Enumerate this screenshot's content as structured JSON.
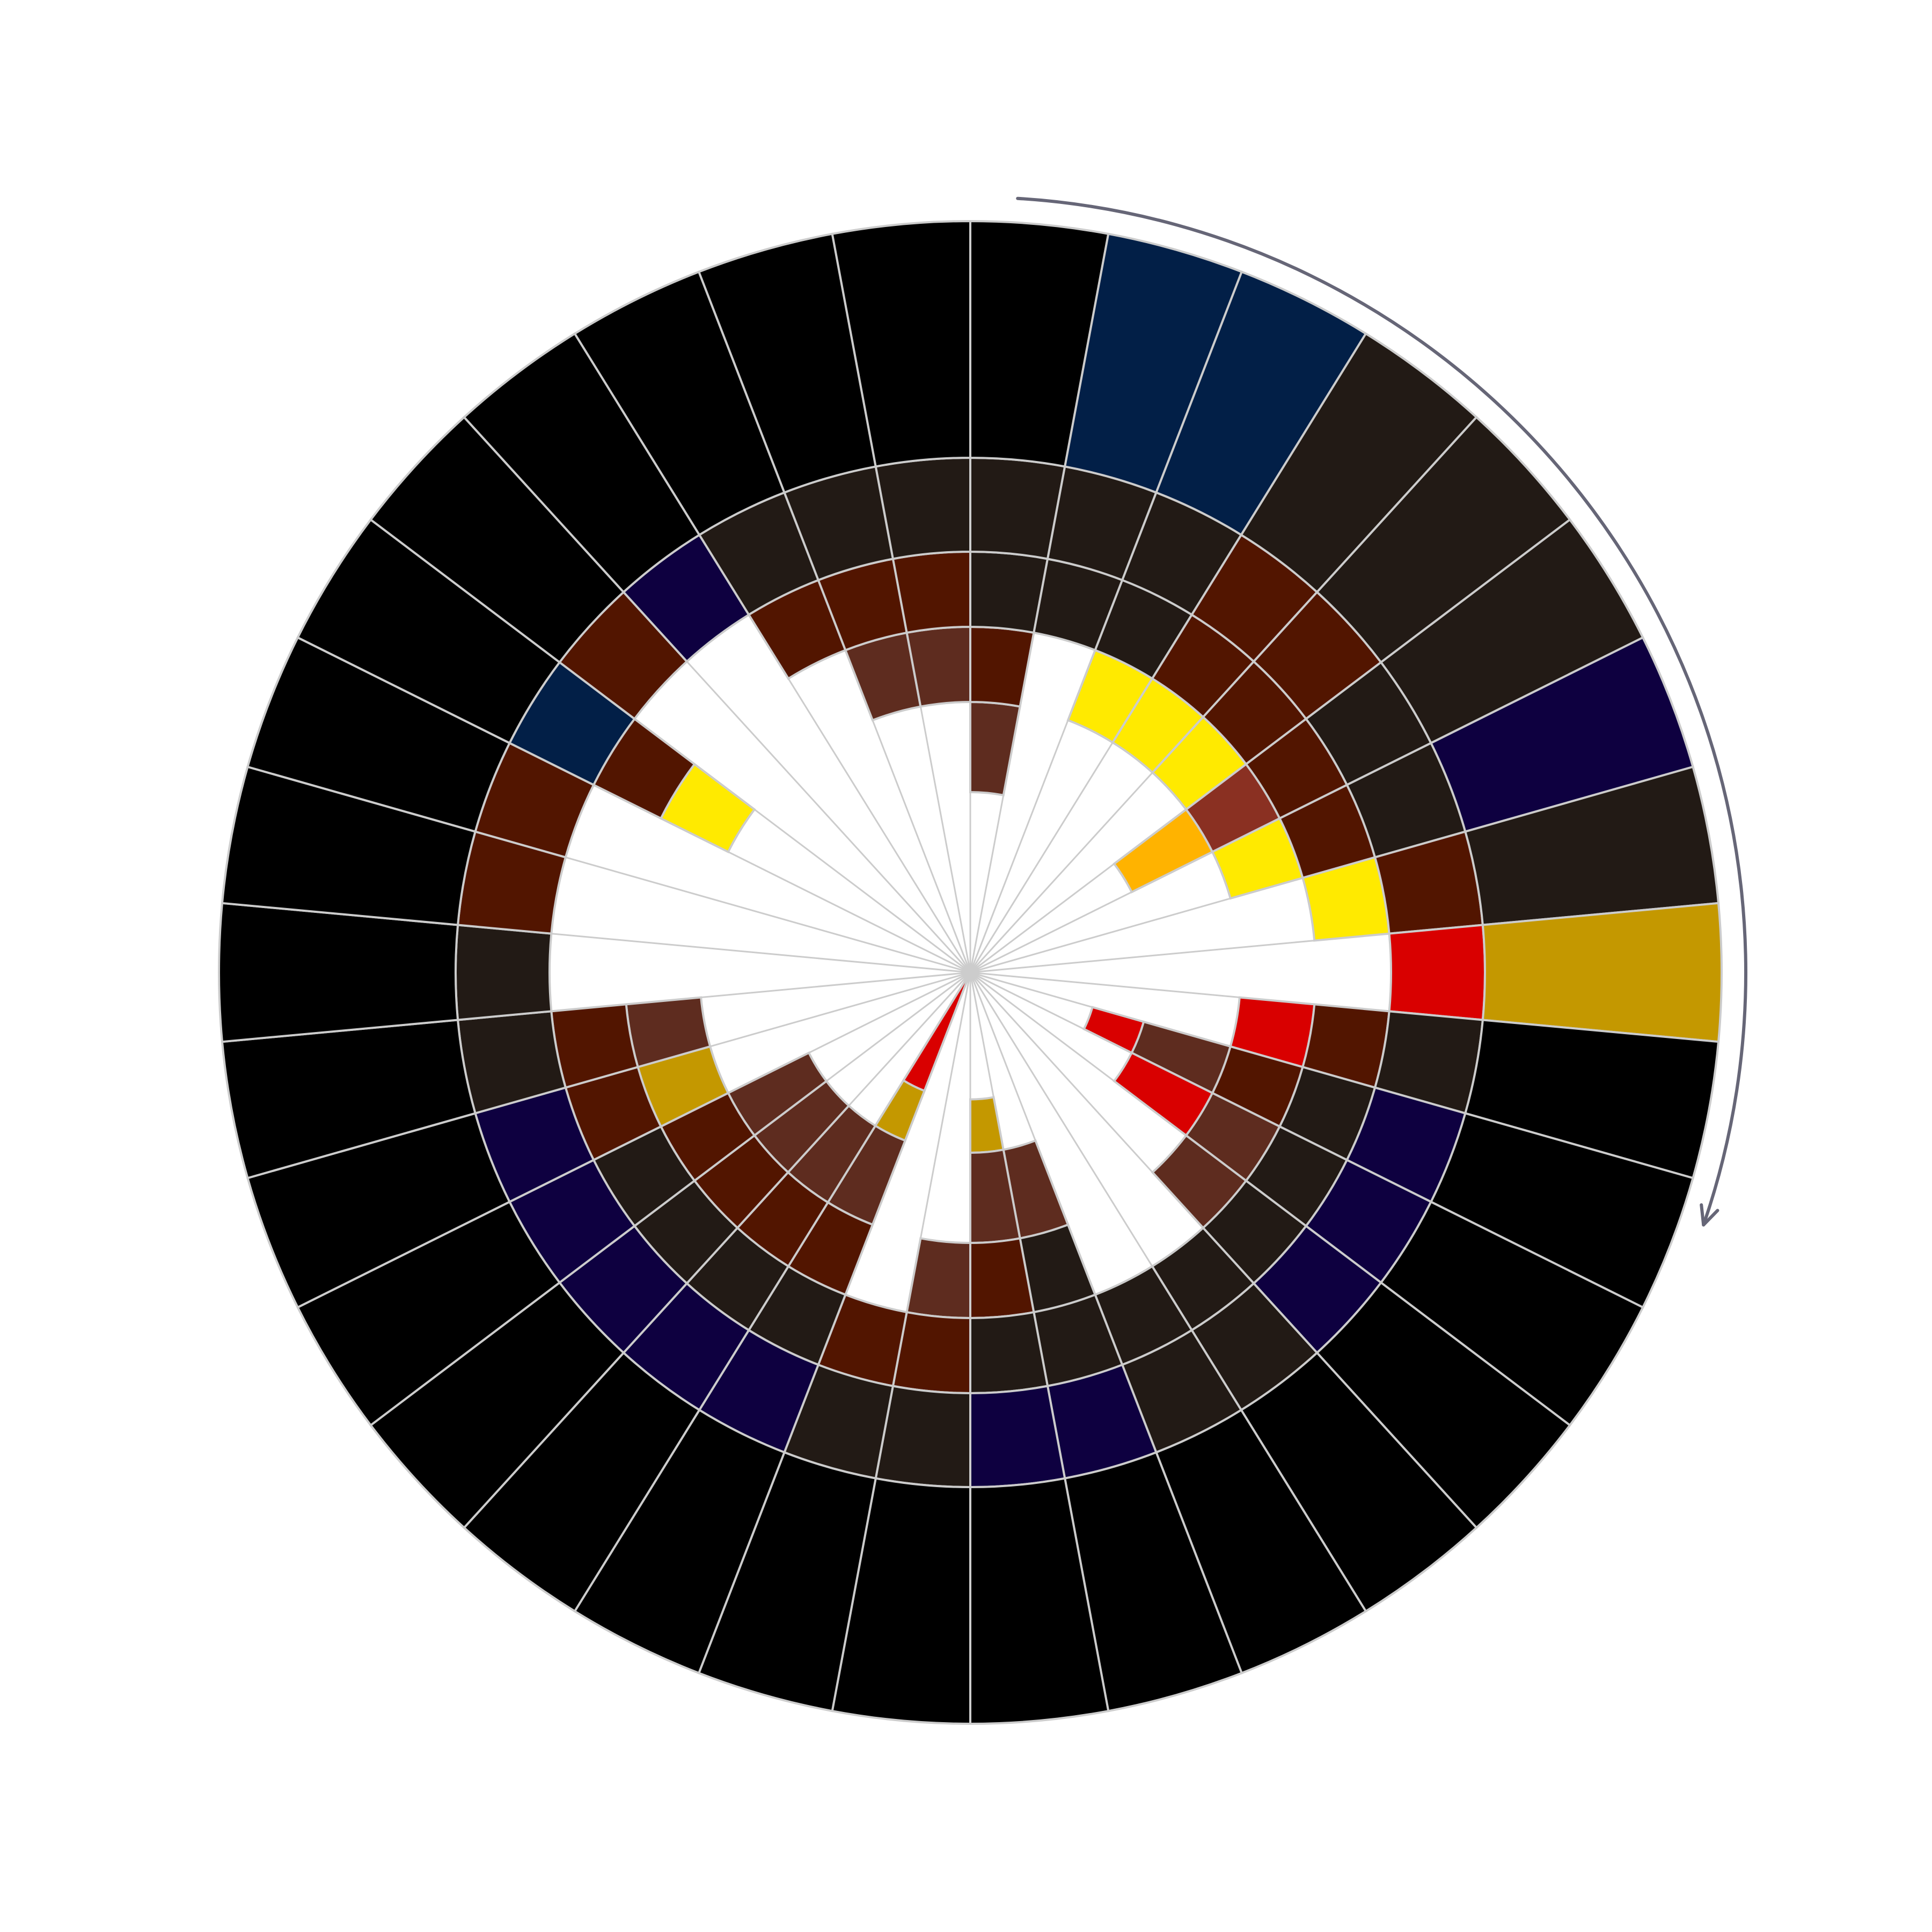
{
  "diagram": {
    "type": "radial-segmented-wheel",
    "direction": "clockwise",
    "background": "#ffffff",
    "line_color": "#cccccc",
    "arrow_color": "#666677",
    "palette": {
      "K": "#000000",
      "D": "#221a15",
      "B": "#521500",
      "R": "#5e2c1f",
      "N": "#021f47",
      "V": "#0e0040",
      "Y": "#ffea00",
      "O": "#ffb300",
      "G": "#c49800",
      "E": "#d90000",
      "M": "#8a3022"
    },
    "rings": [
      0.169,
      0.24,
      0.36,
      0.46,
      0.56,
      0.685,
      1.0
    ],
    "spokes": [
      {
        "cells": [
          "R",
          "B",
          "D",
          "D",
          "K"
        ]
      },
      {
        "cells": [
          "D",
          "D",
          "N"
        ]
      },
      {
        "cells": [
          "Y",
          "D",
          "D",
          "N"
        ]
      },
      {
        "cells": [
          "Y",
          "B",
          "B",
          "D"
        ]
      },
      {
        "cells": [
          "Y",
          "B",
          "B",
          "D"
        ]
      },
      {
        "cells": [
          "O",
          "M",
          "B",
          "D",
          "D"
        ]
      },
      {
        "cells": [
          "Y",
          "B",
          "D",
          "V"
        ]
      },
      {
        "cells": [
          "Y",
          "B",
          "D"
        ]
      },
      {
        "cells": [
          "E",
          "G"
        ]
      },
      {
        "cells": [
          "E",
          "B",
          "D",
          "K"
        ]
      },
      {
        "cells": [
          "E",
          "R",
          "B",
          "D",
          "V",
          "K"
        ]
      },
      {
        "cells": [
          "E",
          "R",
          "D",
          "V",
          "K"
        ]
      },
      {
        "cells": [
          "R",
          "D",
          "V",
          "K"
        ]
      },
      {
        "cells": [
          "D",
          "D",
          "K"
        ]
      },
      {
        "cells": [
          "D",
          "D",
          "K"
        ]
      },
      {
        "cells": [
          "R",
          "D",
          "D",
          "V",
          "K"
        ]
      },
      {
        "cells": [
          "G",
          "R",
          "B",
          "D",
          "V",
          "K"
        ]
      },
      {
        "cells": [
          "R",
          "B",
          "D",
          "K"
        ]
      },
      {
        "cells": [
          "B",
          "D",
          "K"
        ]
      },
      {
        "cells": [
          "Y",
          "E",
          "G",
          "R",
          "B",
          "D",
          "V",
          "K"
        ]
      },
      {
        "cells": [
          "R",
          "B",
          "D",
          "V",
          "K"
        ]
      },
      {
        "cells": [
          "R",
          "B",
          "D",
          "V",
          "K"
        ]
      },
      {
        "cells": [
          "R",
          "B",
          "D",
          "V",
          "K"
        ]
      },
      {
        "cells": [
          "G",
          "B",
          "V",
          "K"
        ]
      },
      {
        "cells": [
          "R",
          "B",
          "D",
          "K"
        ]
      },
      {
        "cells": [
          "D",
          "K"
        ]
      },
      {
        "cells": [
          "B",
          "K"
        ]
      },
      {
        "cells": [
          "B",
          "K"
        ]
      },
      {
        "cells": [
          "Y",
          "B",
          "N",
          "K"
        ]
      },
      {
        "cells": [
          "B",
          "K"
        ]
      },
      {
        "cells": [
          "V",
          "K"
        ]
      },
      {
        "cells": [
          "B",
          "D",
          "K"
        ]
      },
      {
        "cells": [
          "R",
          "B",
          "D",
          "K"
        ]
      },
      {
        "cells": [
          "R",
          "B",
          "D",
          "K"
        ]
      }
    ]
  }
}
